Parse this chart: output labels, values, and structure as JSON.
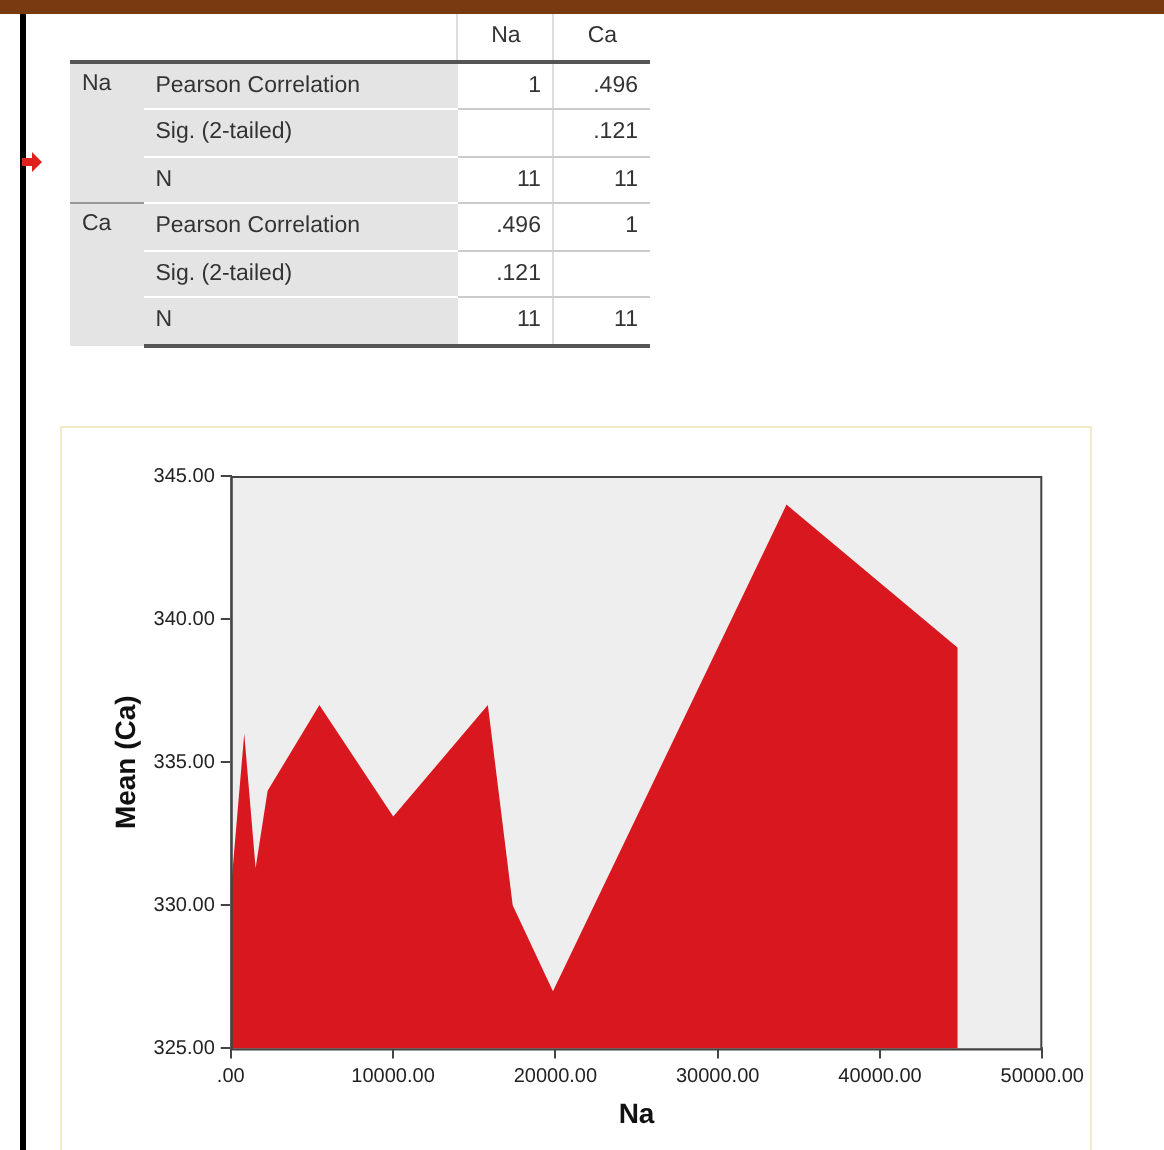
{
  "chart_data": [
    {
      "type": "other",
      "annotations": [
        "Na",
        "Ca",
        "Na",
        "Pearson Correlation",
        "1",
        ".496",
        "Sig. (2-tailed)",
        ".121",
        "N",
        "11",
        "11",
        "Ca",
        "Pearson Correlation",
        ".496",
        "1",
        "Sig. (2-tailed)",
        ".121",
        "N",
        "11",
        "11"
      ]
    },
    {
      "type": "area",
      "xlabel": "Na",
      "ylabel": "Mean (Ca)",
      "color": "#d9171f",
      "x": [
        0,
        830,
        1530,
        2270,
        5460,
        10010,
        15840,
        17370,
        19850,
        34240,
        44790
      ],
      "values": [
        330.5,
        336,
        331.3,
        334,
        337,
        333.1,
        337,
        330,
        327,
        344,
        339
      ],
      "xlim": [
        0,
        50000
      ],
      "xticks": [
        {
          "value": 0,
          "label": ".00"
        },
        {
          "value": 10000,
          "label": "10000.00"
        },
        {
          "value": 20000,
          "label": "20000.00"
        },
        {
          "value": 30000,
          "label": "30000.00"
        },
        {
          "value": 40000,
          "label": "40000.00"
        },
        {
          "value": 50000,
          "label": "50000.00"
        }
      ],
      "ylim": [
        325,
        345
      ],
      "yticks": [
        {
          "value": 325,
          "label": "325.00"
        },
        {
          "value": 330,
          "label": "330.00"
        },
        {
          "value": 335,
          "label": "335.00"
        },
        {
          "value": 340,
          "label": "340.00"
        },
        {
          "value": 345,
          "label": "345.00"
        }
      ],
      "grid": false,
      "legend": false
    }
  ]
}
